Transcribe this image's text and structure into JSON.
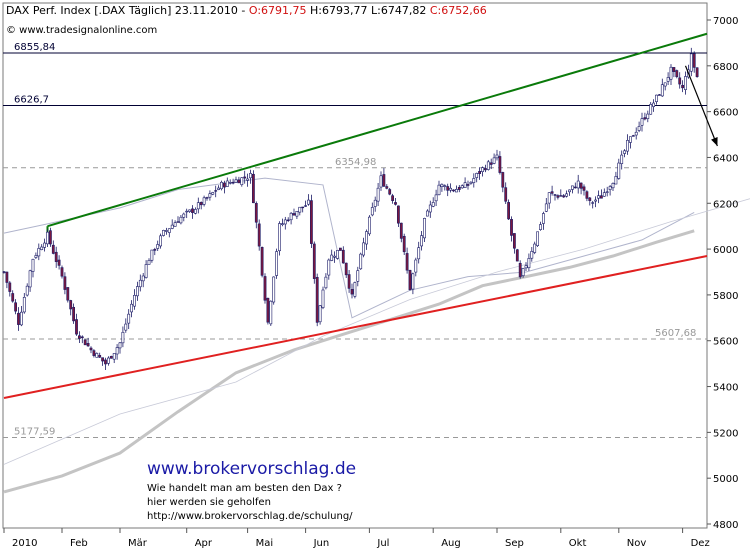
{
  "header": {
    "title_prefix": "DAX Perf. Index [.DAX  Täglich] 23.11.2010 - ",
    "open_text": "O:6791,75",
    "high_text": " H:6793,77",
    "low_text": " L:6747,82",
    "close_text": " C:6752,66",
    "source": "© www.tradesignalonline.com"
  },
  "promo": {
    "brand": "www.brokervorschlag.de",
    "line1": "Wie handelt man am besten  den Dax ?",
    "line2": "hier werden sie geholfen",
    "line3": "http://www.brokervorschlag.de/schulung/"
  },
  "colors": {
    "candle_up": "#ffffff",
    "candle_down": "#7a1840",
    "candle_outline": "#1a1a66",
    "resistance": "#0a7a0a",
    "support": "#e02020",
    "ma_slow": "#c4c4c4",
    "ma_fast": "#b0b4cc",
    "level_line": "#000033",
    "open_text": "#d01010",
    "close_text": "#d01010"
  },
  "chart_data": {
    "type": "candlestick",
    "title": "DAX Perf. Index [.DAX  Täglich] 23.11.2010",
    "ylim": [
      4800,
      7000
    ],
    "yticks": [
      4800,
      5000,
      5200,
      5400,
      5600,
      5800,
      6000,
      6200,
      6400,
      6600,
      6800,
      7000
    ],
    "xtick_labels": [
      "2010",
      "Feb",
      "Mär",
      "Apr",
      "Mai",
      "Jun",
      "Jul",
      "Aug",
      "Sep",
      "Okt",
      "Nov",
      "Dez"
    ],
    "last_bar": {
      "open": 6791.75,
      "high": 6793.77,
      "low": 6747.82,
      "close": 6752.66
    },
    "horizontal_levels": [
      {
        "label": "6855,84",
        "value": 6855.84,
        "style": "solid"
      },
      {
        "label": "6626,7",
        "value": 6626.7,
        "style": "solid"
      },
      {
        "label": "6354,98",
        "value": 6354.98,
        "style": "dashed"
      },
      {
        "label": "5607,68",
        "value": 5607.68,
        "style": "dashed"
      },
      {
        "label": "5177,59",
        "value": 5177.59,
        "style": "dashed"
      }
    ],
    "trend_lines": [
      {
        "name": "resistance",
        "from": {
          "bar": 15,
          "value": 6100
        },
        "to": {
          "bar": 260,
          "value": 6940
        }
      },
      {
        "name": "support",
        "from": {
          "bar": 0,
          "value": 5350
        },
        "to": {
          "bar": 260,
          "value": 5970
        }
      }
    ],
    "forecast_arrow": {
      "from": {
        "bar": 235,
        "value": 6800
      },
      "to": {
        "bar": 246,
        "value": 6450
      }
    },
    "moving_averages": [
      {
        "name": "ma-slow",
        "values": [
          [
            0,
            4940
          ],
          [
            20,
            5010
          ],
          [
            40,
            5110
          ],
          [
            60,
            5290
          ],
          [
            80,
            5460
          ],
          [
            100,
            5560
          ],
          [
            115,
            5620
          ],
          [
            130,
            5680
          ],
          [
            150,
            5760
          ],
          [
            165,
            5840
          ],
          [
            180,
            5880
          ],
          [
            195,
            5920
          ],
          [
            210,
            5970
          ],
          [
            225,
            6030
          ],
          [
            238,
            6080
          ]
        ]
      },
      {
        "name": "ma-fast",
        "values": [
          [
            0,
            6070
          ],
          [
            15,
            6110
          ],
          [
            40,
            6180
          ],
          [
            60,
            6260
          ],
          [
            90,
            6310
          ],
          [
            110,
            6280
          ],
          [
            120,
            5700
          ],
          [
            140,
            5820
          ],
          [
            160,
            5880
          ],
          [
            180,
            5900
          ],
          [
            200,
            5970
          ],
          [
            220,
            6040
          ],
          [
            238,
            6160
          ]
        ]
      },
      {
        "name": "ma-thin",
        "values": [
          [
            0,
            5060
          ],
          [
            40,
            5280
          ],
          [
            80,
            5420
          ],
          [
            110,
            5620
          ],
          [
            140,
            5780
          ],
          [
            170,
            5900
          ],
          [
            200,
            6000
          ],
          [
            230,
            6120
          ],
          [
            260,
            6230
          ]
        ]
      }
    ],
    "anchors": [
      [
        0,
        5900
      ],
      [
        5,
        5680
      ],
      [
        10,
        5960
      ],
      [
        15,
        6060
      ],
      [
        20,
        5880
      ],
      [
        25,
        5640
      ],
      [
        30,
        5560
      ],
      [
        35,
        5500
      ],
      [
        40,
        5590
      ],
      [
        45,
        5800
      ],
      [
        50,
        5960
      ],
      [
        55,
        6070
      ],
      [
        60,
        6130
      ],
      [
        65,
        6170
      ],
      [
        70,
        6220
      ],
      [
        75,
        6280
      ],
      [
        80,
        6300
      ],
      [
        85,
        6320
      ],
      [
        88,
        6010
      ],
      [
        91,
        5680
      ],
      [
        95,
        6100
      ],
      [
        100,
        6160
      ],
      [
        105,
        6200
      ],
      [
        108,
        5690
      ],
      [
        112,
        5960
      ],
      [
        116,
        6000
      ],
      [
        120,
        5790
      ],
      [
        125,
        6080
      ],
      [
        130,
        6310
      ],
      [
        135,
        6200
      ],
      [
        140,
        5830
      ],
      [
        145,
        6120
      ],
      [
        150,
        6280
      ],
      [
        155,
        6260
      ],
      [
        160,
        6280
      ],
      [
        165,
        6350
      ],
      [
        170,
        6400
      ],
      [
        175,
        6060
      ],
      [
        178,
        5870
      ],
      [
        183,
        6030
      ],
      [
        188,
        6240
      ],
      [
        193,
        6230
      ],
      [
        198,
        6290
      ],
      [
        202,
        6200
      ],
      [
        206,
        6230
      ],
      [
        210,
        6300
      ],
      [
        215,
        6460
      ],
      [
        220,
        6560
      ],
      [
        225,
        6660
      ],
      [
        230,
        6780
      ],
      [
        234,
        6700
      ],
      [
        237,
        6840
      ],
      [
        239,
        6752
      ]
    ],
    "bar_count": 240
  }
}
